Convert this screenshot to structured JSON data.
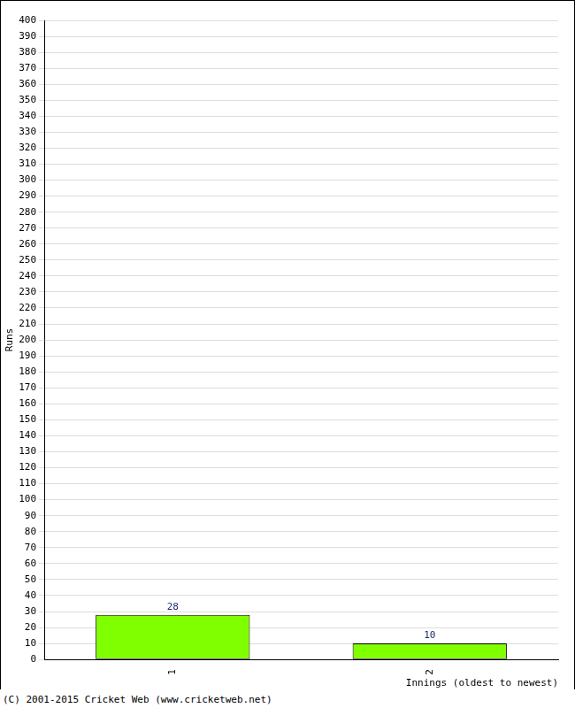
{
  "chart_data": {
    "type": "bar",
    "x_label": "Innings (oldest to newest)",
    "y_label": "Runs",
    "annotations": [
      "(C) 2001-2015 Cricket Web (www.cricketweb.net)"
    ],
    "categories": [
      "1",
      "2"
    ],
    "values": [
      28,
      10
    ],
    "color": "#80ff00",
    "ylim": [
      0,
      400
    ],
    "yticks": [
      0,
      10,
      20,
      30,
      40,
      50,
      60,
      70,
      80,
      90,
      100,
      110,
      120,
      130,
      140,
      150,
      160,
      170,
      180,
      190,
      200,
      210,
      220,
      230,
      240,
      250,
      260,
      270,
      280,
      290,
      300,
      310,
      320,
      330,
      340,
      350,
      360,
      370,
      380,
      390,
      400
    ],
    "grid": true,
    "data_labels": true
  }
}
